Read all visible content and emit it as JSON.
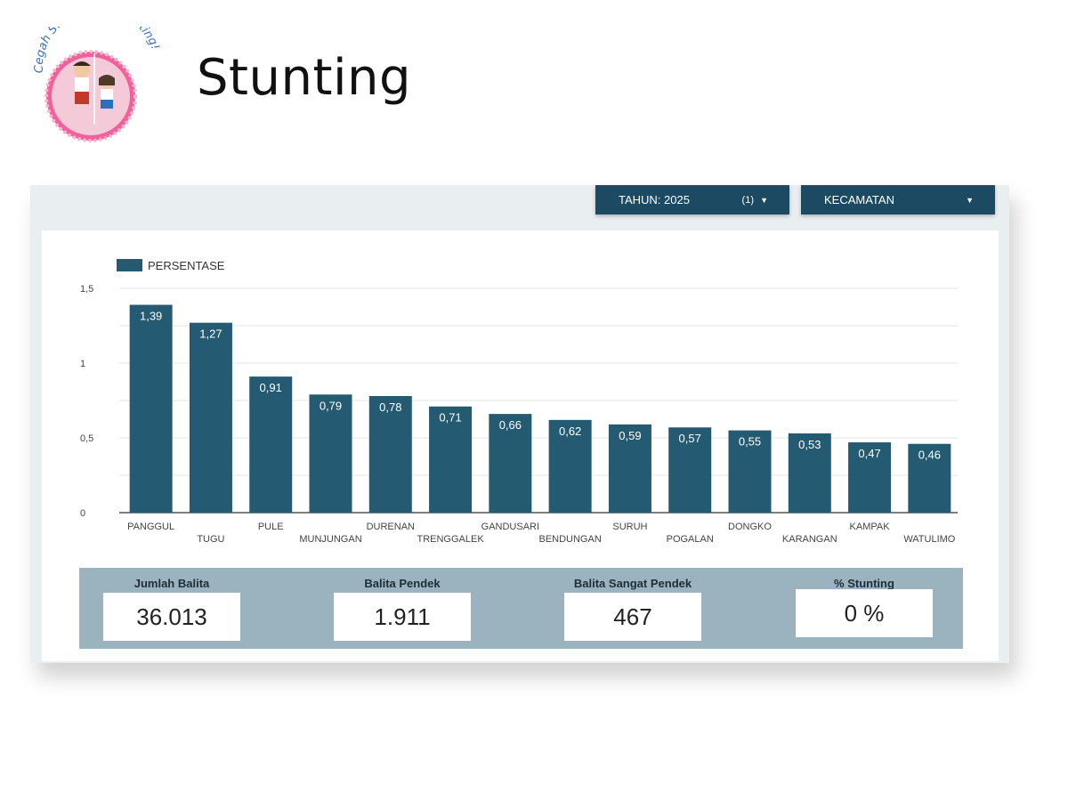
{
  "logo": {
    "text": "Cegah Stunting, Itu Penting!"
  },
  "slide": {
    "title": "Stunting"
  },
  "filters": {
    "year_label": "TAHUN: 2025",
    "year_extra": "(1)",
    "district_label": "KECAMATAN"
  },
  "stats": {
    "jumlah_balita": {
      "label": "Jumlah Balita",
      "value": "36.013"
    },
    "balita_pendek": {
      "label": "Balita Pendek",
      "value": "1.911"
    },
    "balita_sangat_pendek": {
      "label": "Balita Sangat Pendek",
      "value": "467"
    },
    "persen_stunting": {
      "label": "% Stunting",
      "value": "0 %"
    }
  },
  "colors": {
    "bar": "#245a72",
    "dropdown": "#1c4a63",
    "stats_bg": "#9ab3bf"
  },
  "chart_data": {
    "type": "bar",
    "title": "",
    "xlabel": "",
    "ylabel": "",
    "legend": "top-left",
    "grid": true,
    "ylim": [
      0,
      1.5
    ],
    "yticks": [
      "0",
      "0,5",
      "1",
      "1,5"
    ],
    "categories": [
      "PANGGUL",
      "TUGU",
      "PULE",
      "MUNJUNGAN",
      "DURENAN",
      "TRENGGALEK",
      "GANDUSARI",
      "BENDUNGAN",
      "SURUH",
      "POGALAN",
      "DONGKO",
      "KARANGAN",
      "KAMPAK",
      "WATULIMO"
    ],
    "series": [
      {
        "name": "PERSENTASE",
        "values": [
          1.39,
          1.27,
          0.91,
          0.79,
          0.78,
          0.71,
          0.66,
          0.62,
          0.59,
          0.57,
          0.55,
          0.53,
          0.47,
          0.46
        ],
        "labels": [
          "1,39",
          "1,27",
          "0,91",
          "0,79",
          "0,78",
          "0,71",
          "0,66",
          "0,62",
          "0,59",
          "0,57",
          "0,55",
          "0,53",
          "0,47",
          "0,46"
        ]
      }
    ]
  }
}
